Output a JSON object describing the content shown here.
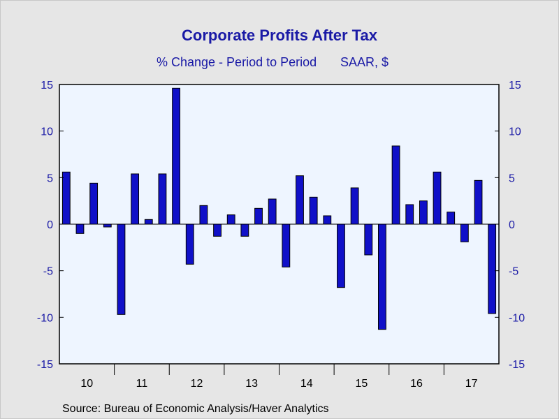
{
  "chart_data": {
    "type": "bar",
    "title": "Corporate Profits After Tax",
    "subtitle_left": "% Change - Period to Period",
    "subtitle_right": "SAAR, $",
    "source": "Source:  Bureau of Economic Analysis/Haver Analytics",
    "ylim": [
      -15,
      15
    ],
    "yticks": [
      15,
      10,
      5,
      0,
      -5,
      -10,
      -15
    ],
    "year_labels": [
      "10",
      "11",
      "12",
      "13",
      "14",
      "15",
      "16",
      "17"
    ],
    "categories": [
      "10Q1",
      "10Q2",
      "10Q3",
      "10Q4",
      "11Q1",
      "11Q2",
      "11Q3",
      "11Q4",
      "12Q1",
      "12Q2",
      "12Q3",
      "12Q4",
      "13Q1",
      "13Q2",
      "13Q3",
      "13Q4",
      "14Q1",
      "14Q2",
      "14Q3",
      "14Q4",
      "15Q1",
      "15Q2",
      "15Q3",
      "15Q4",
      "16Q1",
      "16Q2",
      "16Q3",
      "16Q4",
      "17Q1",
      "17Q2",
      "17Q3",
      "17Q4"
    ],
    "values": [
      5.6,
      -1.0,
      4.4,
      -0.3,
      -9.7,
      5.4,
      0.5,
      5.4,
      14.6,
      -4.3,
      2.0,
      -1.3,
      1.0,
      -1.3,
      1.7,
      2.7,
      -4.6,
      5.2,
      2.9,
      0.9,
      -6.8,
      3.9,
      -3.3,
      -11.3,
      8.4,
      2.1,
      2.5,
      5.6,
      1.3,
      -1.9,
      4.7,
      -9.6
    ],
    "bar_color": "#1010c8",
    "plot_background": "#eef5ff",
    "grid": false,
    "legend": "none"
  }
}
